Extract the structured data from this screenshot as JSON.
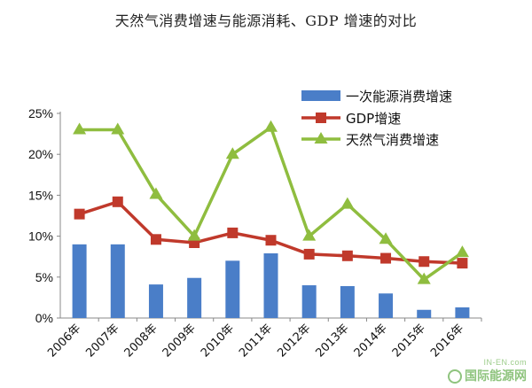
{
  "chart_data": {
    "type": "bar",
    "title": "天然气消费增速与能源消耗、GDP 增速的对比",
    "categories": [
      "2006年",
      "2007年",
      "2008年",
      "2009年",
      "2010年",
      "2011年",
      "2012年",
      "2013年",
      "2014年",
      "2015年",
      "2016年"
    ],
    "y_ticks": [
      "0%",
      "5%",
      "10%",
      "15%",
      "20%",
      "25%"
    ],
    "ylim": [
      0,
      25
    ],
    "y_unit": "%",
    "grid": false,
    "legend_position": "top-right",
    "series": [
      {
        "name": "一次能源消费增速",
        "kind": "bar",
        "color": "#4a7ec8",
        "values": [
          9.0,
          9.0,
          4.1,
          4.9,
          7.0,
          7.9,
          4.0,
          3.9,
          3.0,
          1.0,
          1.3
        ]
      },
      {
        "name": "GDP增速",
        "kind": "line",
        "marker": "square",
        "color": "#c0392b",
        "values": [
          12.7,
          14.2,
          9.6,
          9.2,
          10.4,
          9.5,
          7.8,
          7.6,
          7.3,
          6.9,
          6.7
        ]
      },
      {
        "name": "天然气消费增速",
        "kind": "line",
        "marker": "triangle",
        "color": "#8fbd3f",
        "values": [
          23.0,
          23.0,
          15.1,
          10.0,
          20.0,
          23.3,
          10.0,
          13.9,
          9.6,
          4.7,
          8.0
        ]
      }
    ]
  },
  "watermark": {
    "top": "IN-EN.com",
    "main": "国际能源网"
  }
}
